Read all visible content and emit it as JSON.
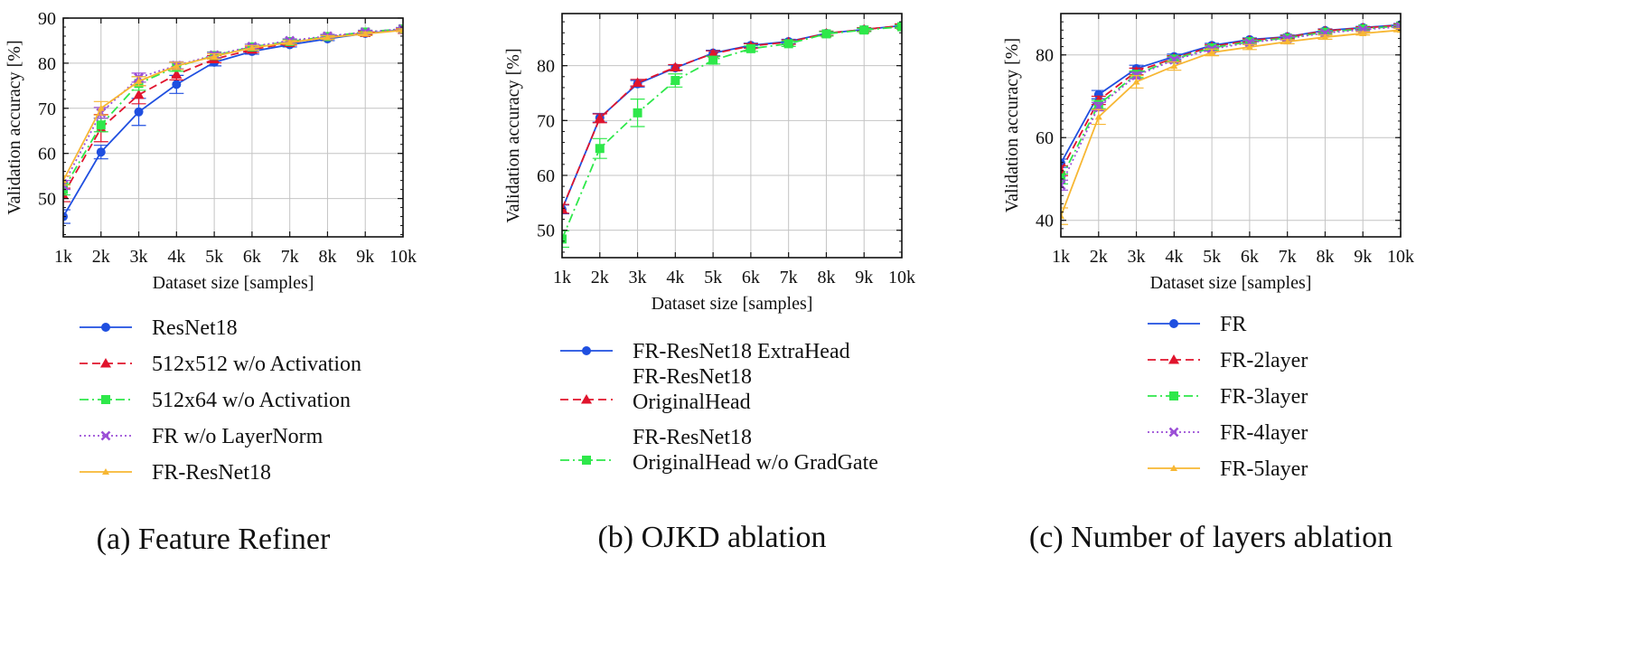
{
  "colors": {
    "blue": "#1f4fe0",
    "red": "#e0142d",
    "green": "#2ee84a",
    "purple": "#9b4fd6",
    "orange": "#f7b733",
    "grid": "#c4c4c4",
    "axis": "#111111"
  },
  "chart_data": [
    {
      "type": "line",
      "title": "(a) Feature Refiner",
      "xlabel": "Dataset size [samples]",
      "ylabel": "Validation accuracy [%]",
      "categories": [
        "1k",
        "2k",
        "3k",
        "4k",
        "5k",
        "6k",
        "7k",
        "8k",
        "9k",
        "10k"
      ],
      "ylim": [
        41.5,
        90
      ],
      "yticks": [
        50,
        60,
        70,
        80,
        90
      ],
      "grid": true,
      "legend_position": "below",
      "series": [
        {
          "name": "ResNet18",
          "style": "solid",
          "marker": "circle",
          "color_key": "blue",
          "values": [
            46.0,
            60.3,
            69.2,
            75.3,
            80.2,
            82.6,
            84.1,
            85.4,
            86.6,
            87.4
          ],
          "errors": [
            1.5,
            1.5,
            3.0,
            2.0,
            0.8,
            0.6,
            0.5,
            0.4,
            0.4,
            0.3
          ]
        },
        {
          "name": "512x512 w/o Activation",
          "style": "dashed",
          "marker": "triangle",
          "color_key": "red",
          "values": [
            50.8,
            65.6,
            73.0,
            77.5,
            80.9,
            83.0,
            84.5,
            85.8,
            86.7,
            87.4
          ],
          "errors": [
            1.5,
            3.0,
            2.0,
            1.2,
            0.8,
            0.6,
            0.5,
            0.4,
            0.4,
            0.3
          ]
        },
        {
          "name": "512x64 w/o Activation",
          "style": "dashdot",
          "marker": "square",
          "color_key": "green",
          "values": [
            52.0,
            66.3,
            75.5,
            79.2,
            81.7,
            83.6,
            84.8,
            85.9,
            86.9,
            87.6
          ],
          "errors": [
            1.2,
            1.5,
            1.5,
            1.0,
            0.8,
            0.6,
            0.5,
            0.4,
            0.4,
            0.3
          ]
        },
        {
          "name": "FR w/o LayerNorm",
          "style": "dotted",
          "marker": "x",
          "color_key": "purple",
          "values": [
            53.0,
            69.0,
            76.8,
            79.5,
            81.8,
            83.7,
            85.0,
            86.0,
            86.9,
            87.6
          ],
          "errors": [
            1.0,
            1.2,
            1.0,
            0.8,
            0.6,
            0.5,
            0.4,
            0.4,
            0.4,
            0.3
          ]
        },
        {
          "name": "FR-ResNet18",
          "style": "solid",
          "marker": "tri-small",
          "color_key": "orange",
          "values": [
            54.0,
            70.0,
            76.0,
            79.4,
            81.5,
            83.4,
            84.6,
            85.7,
            86.5,
            87.3
          ],
          "errors": [
            1.0,
            1.5,
            1.0,
            0.8,
            0.6,
            0.5,
            0.4,
            0.4,
            0.4,
            0.3
          ]
        }
      ]
    },
    {
      "type": "line",
      "title": "(b) OJKD ablation",
      "xlabel": "Dataset size [samples]",
      "ylabel": "Validation accuracy [%]",
      "categories": [
        "1k",
        "2k",
        "3k",
        "4k",
        "5k",
        "6k",
        "7k",
        "8k",
        "9k",
        "10k"
      ],
      "ylim": [
        45,
        89.5
      ],
      "yticks": [
        50,
        60,
        70,
        80
      ],
      "grid": true,
      "legend_position": "below",
      "series": [
        {
          "name": "FR-ResNet18 ExtraHead",
          "style": "solid",
          "marker": "circle",
          "color_key": "blue",
          "values": [
            53.8,
            70.5,
            76.7,
            79.6,
            82.3,
            83.7,
            84.4,
            85.9,
            86.6,
            87.3
          ],
          "errors": [
            0.8,
            0.8,
            0.6,
            0.5,
            0.5,
            0.4,
            0.4,
            0.4,
            0.3,
            0.3
          ]
        },
        {
          "name": "FR-ResNet18\nOriginalHead",
          "style": "dashed",
          "marker": "triangle",
          "color_key": "red",
          "values": [
            53.9,
            70.4,
            76.9,
            79.7,
            82.2,
            83.6,
            84.3,
            85.9,
            86.6,
            87.3
          ],
          "errors": [
            0.8,
            0.8,
            0.6,
            0.5,
            0.5,
            0.4,
            0.4,
            0.4,
            0.3,
            0.3
          ]
        },
        {
          "name": "FR-ResNet18\nOriginalHead w/o GradGate",
          "style": "dashdot",
          "marker": "square",
          "color_key": "green",
          "values": [
            48.4,
            64.9,
            71.4,
            77.3,
            81.0,
            83.1,
            84.0,
            85.8,
            86.5,
            87.1
          ],
          "errors": [
            1.5,
            1.8,
            2.5,
            1.2,
            0.7,
            0.5,
            0.5,
            0.4,
            0.3,
            0.3
          ]
        }
      ]
    },
    {
      "type": "line",
      "title": "(c) Number of layers ablation",
      "xlabel": "Dataset size [samples]",
      "ylabel": "Validation accuracy [%]",
      "categories": [
        "1k",
        "2k",
        "3k",
        "4k",
        "5k",
        "6k",
        "7k",
        "8k",
        "9k",
        "10k"
      ],
      "ylim": [
        36,
        90
      ],
      "yticks": [
        40,
        60,
        80
      ],
      "grid": true,
      "legend_position": "below",
      "series": [
        {
          "name": "FR",
          "style": "solid",
          "marker": "circle",
          "color_key": "blue",
          "values": [
            53.8,
            70.4,
            76.7,
            79.6,
            82.3,
            83.7,
            84.4,
            85.9,
            86.6,
            87.3
          ],
          "errors": [
            1.0,
            1.0,
            0.8,
            0.6,
            0.5,
            0.4,
            0.4,
            0.4,
            0.3,
            0.3
          ]
        },
        {
          "name": "FR-2layer",
          "style": "dashed",
          "marker": "triangle",
          "color_key": "red",
          "values": [
            52.0,
            69.0,
            76.0,
            79.2,
            82.0,
            83.5,
            84.3,
            85.8,
            86.5,
            87.2
          ],
          "errors": [
            1.2,
            1.0,
            0.8,
            0.6,
            0.5,
            0.4,
            0.4,
            0.4,
            0.3,
            0.3
          ]
        },
        {
          "name": "FR-3layer",
          "style": "dashdot",
          "marker": "square",
          "color_key": "green",
          "values": [
            50.0,
            68.0,
            75.3,
            79.0,
            81.7,
            83.2,
            84.1,
            85.5,
            86.3,
            87.0
          ],
          "errors": [
            1.2,
            1.0,
            0.8,
            0.6,
            0.5,
            0.4,
            0.4,
            0.4,
            0.3,
            0.3
          ]
        },
        {
          "name": "FR-4layer",
          "style": "dotted",
          "marker": "x",
          "color_key": "purple",
          "values": [
            48.5,
            67.5,
            75.0,
            78.8,
            81.4,
            83.0,
            84.0,
            85.3,
            86.1,
            86.8
          ],
          "errors": [
            1.2,
            1.0,
            0.8,
            0.6,
            0.5,
            0.4,
            0.4,
            0.4,
            0.3,
            0.3
          ]
        },
        {
          "name": "FR-5layer",
          "style": "solid",
          "marker": "tri-small",
          "color_key": "orange",
          "values": [
            41.0,
            65.0,
            73.5,
            77.3,
            80.6,
            81.9,
            83.2,
            84.3,
            85.2,
            86.0
          ],
          "errors": [
            2.0,
            1.8,
            1.5,
            1.0,
            0.8,
            0.6,
            0.5,
            0.5,
            0.4,
            0.4
          ]
        }
      ]
    }
  ]
}
